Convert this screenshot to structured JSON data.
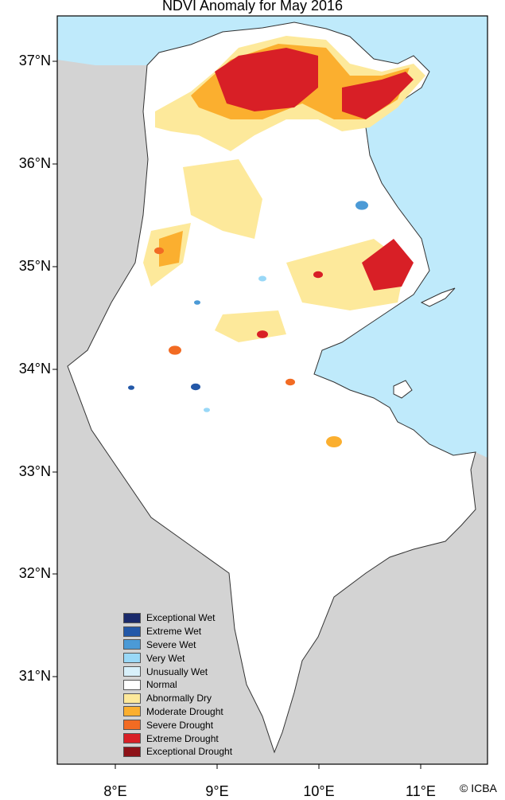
{
  "title": "NDVI Anomaly for May 2016",
  "y_ticks": [
    "37°N",
    "36°N",
    "35°N",
    "34°N",
    "33°N",
    "32°N",
    "31°N"
  ],
  "x_ticks": [
    "8°E",
    "9°E",
    "10°E",
    "11°E"
  ],
  "credit": "© ICBA",
  "colors": {
    "sea": "#bfeafb",
    "neighbor_land": "#d3d3d3",
    "country": "#ffffff"
  },
  "legend": [
    {
      "label": "Exceptional Wet",
      "color": "#1a2a6b"
    },
    {
      "label": "Extreme Wet",
      "color": "#2358a8"
    },
    {
      "label": "Severe Wet",
      "color": "#4b9ad6"
    },
    {
      "label": "Very Wet",
      "color": "#99d8f7"
    },
    {
      "label": "Unusually Wet",
      "color": "#d8f0fa"
    },
    {
      "label": "Normal",
      "color": "#ffffff"
    },
    {
      "label": "Abnormally Dry",
      "color": "#fde99b"
    },
    {
      "label": "Moderate Drought",
      "color": "#fbaf2f"
    },
    {
      "label": "Severe Drought",
      "color": "#f26b23"
    },
    {
      "label": "Extreme Drought",
      "color": "#d81f26"
    },
    {
      "label": "Exceptional Drought",
      "color": "#8e1218"
    }
  ]
}
